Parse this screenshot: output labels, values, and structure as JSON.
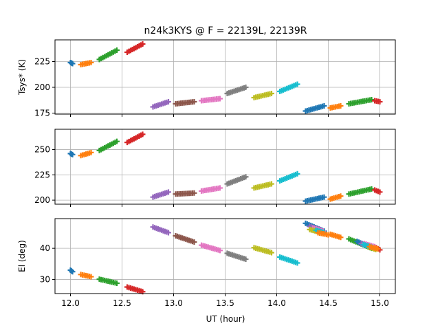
{
  "chart_data": {
    "type": "scatter",
    "title": "n24k3KYS @ F = 22139L, 22139R",
    "xlabel": "UT (hour)",
    "xlim": [
      11.85,
      15.15
    ],
    "xticks": [
      12.0,
      12.5,
      13.0,
      13.5,
      14.0,
      14.5,
      15.0
    ],
    "xtick_labels": [
      "12.0",
      "12.5",
      "13.0",
      "13.5",
      "14.0",
      "14.5",
      "15.0"
    ],
    "grid": true,
    "palette": [
      "#1f77b4",
      "#ff7f0e",
      "#2ca02c",
      "#d62728",
      "#9467bd",
      "#8c564b",
      "#e377c2",
      "#7f7f7f",
      "#bcbd22",
      "#17becf"
    ],
    "panels": [
      {
        "name": "tsys-left",
        "ylabel": "Tsys* (K)",
        "ylim": [
          174,
          246
        ],
        "yticks": [
          175,
          200,
          225
        ],
        "ytick_labels": [
          "175",
          "200",
          "225"
        ],
        "segments": [
          {
            "color_index": 0,
            "x": [
              12.0,
              12.02
            ],
            "y": [
              224,
              223
            ]
          },
          {
            "color_index": 1,
            "x": [
              12.1,
              12.2
            ],
            "y": [
              222,
              224
            ]
          },
          {
            "color_index": 2,
            "x": [
              12.28,
              12.45
            ],
            "y": [
              227,
              236
            ]
          },
          {
            "color_index": 3,
            "x": [
              12.55,
              12.7
            ],
            "y": [
              234,
              242
            ]
          },
          {
            "color_index": 4,
            "x": [
              12.8,
              12.95
            ],
            "y": [
              181,
              186
            ]
          },
          {
            "color_index": 5,
            "x": [
              13.02,
              13.2
            ],
            "y": [
              184,
              186
            ]
          },
          {
            "color_index": 6,
            "x": [
              13.27,
              13.45
            ],
            "y": [
              187,
              189
            ]
          },
          {
            "color_index": 7,
            "x": [
              13.52,
              13.7
            ],
            "y": [
              194,
              200
            ]
          },
          {
            "color_index": 8,
            "x": [
              13.78,
              13.95
            ],
            "y": [
              190,
              194
            ]
          },
          {
            "color_index": 9,
            "x": [
              14.03,
              14.2
            ],
            "y": [
              196,
              203
            ]
          },
          {
            "color_index": 0,
            "x": [
              14.28,
              14.46
            ],
            "y": [
              177,
              182
            ]
          },
          {
            "color_index": 1,
            "x": [
              14.52,
              14.62
            ],
            "y": [
              180,
              182
            ]
          },
          {
            "color_index": 2,
            "x": [
              14.7,
              14.92
            ],
            "y": [
              184,
              188
            ]
          },
          {
            "color_index": 3,
            "x": [
              14.95,
              15.0
            ],
            "y": [
              187,
              186
            ]
          }
        ]
      },
      {
        "name": "tsys-right",
        "ylabel": "",
        "ylim": [
          196,
          270
        ],
        "yticks": [
          200,
          225,
          250
        ],
        "ytick_labels": [
          "200",
          "225",
          "250"
        ],
        "segments": [
          {
            "color_index": 0,
            "x": [
              12.0,
              12.02
            ],
            "y": [
              246,
              245
            ]
          },
          {
            "color_index": 1,
            "x": [
              12.1,
              12.2
            ],
            "y": [
              244,
              247
            ]
          },
          {
            "color_index": 2,
            "x": [
              12.28,
              12.45
            ],
            "y": [
              249,
              258
            ]
          },
          {
            "color_index": 3,
            "x": [
              12.55,
              12.7
            ],
            "y": [
              257,
              265
            ]
          },
          {
            "color_index": 4,
            "x": [
              12.8,
              12.95
            ],
            "y": [
              203,
              208
            ]
          },
          {
            "color_index": 5,
            "x": [
              13.02,
              13.2
            ],
            "y": [
              206,
              207
            ]
          },
          {
            "color_index": 6,
            "x": [
              13.27,
              13.45
            ],
            "y": [
              209,
              212
            ]
          },
          {
            "color_index": 7,
            "x": [
              13.52,
              13.7
            ],
            "y": [
              216,
              223
            ]
          },
          {
            "color_index": 8,
            "x": [
              13.78,
              13.95
            ],
            "y": [
              212,
              216
            ]
          },
          {
            "color_index": 9,
            "x": [
              14.03,
              14.2
            ],
            "y": [
              219,
              226
            ]
          },
          {
            "color_index": 0,
            "x": [
              14.28,
              14.46
            ],
            "y": [
              199,
              203
            ]
          },
          {
            "color_index": 1,
            "x": [
              14.52,
              14.62
            ],
            "y": [
              201,
              204
            ]
          },
          {
            "color_index": 2,
            "x": [
              14.7,
              14.92
            ],
            "y": [
              206,
              211
            ]
          },
          {
            "color_index": 3,
            "x": [
              14.95,
              15.0
            ],
            "y": [
              210,
              208
            ]
          }
        ]
      },
      {
        "name": "elevation",
        "ylabel": "El (deg)",
        "ylim": [
          25.5,
          49.5
        ],
        "yticks": [
          30,
          40
        ],
        "ytick_labels": [
          "30",
          "40"
        ],
        "segments": [
          {
            "color_index": 0,
            "x": [
              12.0,
              12.02
            ],
            "y": [
              33.0,
              32.5
            ]
          },
          {
            "color_index": 1,
            "x": [
              12.1,
              12.2
            ],
            "y": [
              31.6,
              30.9
            ]
          },
          {
            "color_index": 2,
            "x": [
              12.28,
              12.45
            ],
            "y": [
              30.1,
              28.8
            ]
          },
          {
            "color_index": 3,
            "x": [
              12.55,
              12.7
            ],
            "y": [
              27.6,
              26.1
            ]
          },
          {
            "color_index": 4,
            "x": [
              12.8,
              12.95
            ],
            "y": [
              46.8,
              45.0
            ]
          },
          {
            "color_index": 5,
            "x": [
              13.02,
              13.2
            ],
            "y": [
              44.0,
              42.0
            ]
          },
          {
            "color_index": 6,
            "x": [
              13.27,
              13.45
            ],
            "y": [
              41.0,
              39.3
            ]
          },
          {
            "color_index": 7,
            "x": [
              13.52,
              13.7
            ],
            "y": [
              38.4,
              36.5
            ]
          },
          {
            "color_index": 8,
            "x": [
              13.78,
              13.95
            ],
            "y": [
              40.2,
              38.6
            ]
          },
          {
            "color_index": 9,
            "x": [
              14.03,
              14.2
            ],
            "y": [
              37.2,
              35.3
            ]
          },
          {
            "color_index": 0,
            "x": [
              14.28,
              14.46
            ],
            "y": [
              48.0,
              45.5
            ]
          },
          {
            "color_index": 1,
            "x": [
              14.52,
              14.62
            ],
            "y": [
              44.5,
              43.5
            ]
          },
          {
            "color_index": 2,
            "x": [
              14.7,
              14.92
            ],
            "y": [
              43.0,
              40.0
            ]
          },
          {
            "color_index": 3,
            "x": [
              14.95,
              15.0
            ],
            "y": [
              40.5,
              39.5
            ]
          },
          {
            "color_index": 4,
            "x": [
              14.32,
              14.42
            ],
            "y": [
              47.0,
              46.0
            ]
          },
          {
            "color_index": 6,
            "x": [
              14.35,
              14.45
            ],
            "y": [
              46.5,
              45.5
            ]
          },
          {
            "color_index": 8,
            "x": [
              14.32,
              14.4
            ],
            "y": [
              46.0,
              45.3
            ]
          },
          {
            "color_index": 9,
            "x": [
              14.38,
              14.46
            ],
            "y": [
              45.8,
              45.0
            ]
          },
          {
            "color_index": 1,
            "x": [
              14.4,
              14.5
            ],
            "y": [
              45.0,
              44.3
            ]
          },
          {
            "color_index": 0,
            "x": [
              14.78,
              14.86
            ],
            "y": [
              42.2,
              41.0
            ]
          },
          {
            "color_index": 4,
            "x": [
              14.82,
              14.92
            ],
            "y": [
              41.5,
              40.3
            ]
          },
          {
            "color_index": 6,
            "x": [
              14.85,
              14.95
            ],
            "y": [
              41.5,
              40.5
            ]
          },
          {
            "color_index": 8,
            "x": [
              14.88,
              14.96
            ],
            "y": [
              40.6,
              39.6
            ]
          },
          {
            "color_index": 9,
            "x": [
              14.84,
              14.92
            ],
            "y": [
              41.2,
              40.4
            ]
          },
          {
            "color_index": 1,
            "x": [
              14.9,
              14.98
            ],
            "y": [
              40.5,
              39.8
            ]
          }
        ]
      }
    ]
  }
}
